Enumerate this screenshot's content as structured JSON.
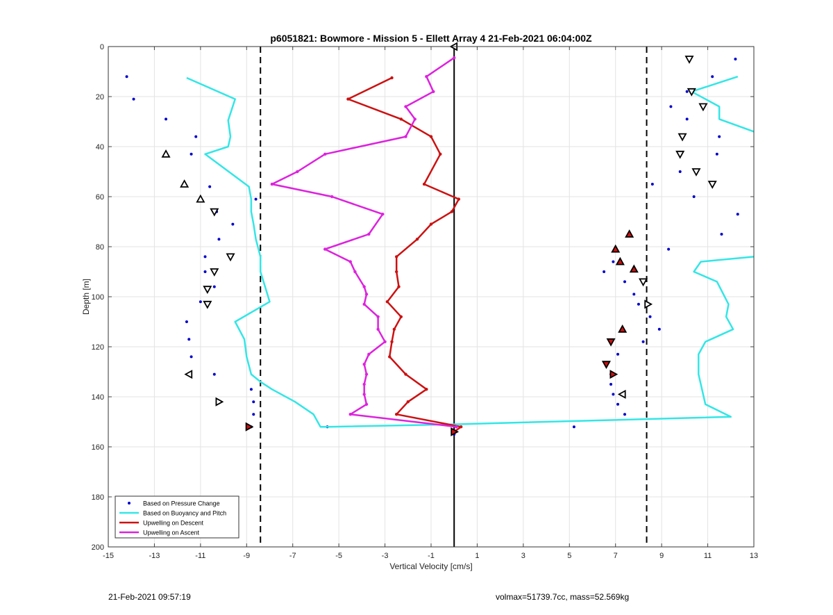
{
  "footer": {
    "timestamp": "21-Feb-2021 09:57:19",
    "summary": "volmax=51739.7cc, mass=52.569kg"
  },
  "chart_data": {
    "type": "scatter",
    "title": "p6051821: Bowmore - Mission 5 - Ellett Array 4 21-Feb-2021 06:04:00Z",
    "xlabel": "Vertical Velocity [cm/s]",
    "ylabel": "Depth [m]",
    "xlim": [
      -15,
      13
    ],
    "ylim": [
      0,
      200
    ],
    "y_reversed": true,
    "x_ticks": [
      -15,
      -13,
      -11,
      -9,
      -7,
      -5,
      -3,
      -1,
      1,
      3,
      5,
      7,
      9,
      11,
      13
    ],
    "y_ticks": [
      0,
      20,
      40,
      60,
      80,
      100,
      120,
      140,
      160,
      180,
      200
    ],
    "grid": true,
    "legend_position": "bottom-left",
    "colors": {
      "pressure": "#0000cc",
      "buoyancy": "#33e6e6",
      "descent": "#cc1111",
      "ascent": "#dd22dd",
      "reference_lines": "#000000",
      "marker_fill": "#cc1111"
    },
    "series": [
      {
        "name": "Based on Pressure Change",
        "style": "points",
        "points": [
          [
            -14.2,
            12
          ],
          [
            -13.9,
            21
          ],
          [
            -12.5,
            29
          ],
          [
            -11.2,
            36
          ],
          [
            -11.4,
            43
          ],
          [
            -10.6,
            56
          ],
          [
            -8.6,
            61
          ],
          [
            -10.3,
            66
          ],
          [
            -9.6,
            71
          ],
          [
            -10.2,
            77
          ],
          [
            -10.8,
            84
          ],
          [
            -10.8,
            90
          ],
          [
            -10.4,
            96
          ],
          [
            -11,
            102
          ],
          [
            -11.6,
            110
          ],
          [
            -11.5,
            117
          ],
          [
            -11.4,
            124
          ],
          [
            -10.4,
            131
          ],
          [
            -8.8,
            137
          ],
          [
            -8.7,
            142
          ],
          [
            -8.7,
            147
          ],
          [
            -8.8,
            152
          ],
          [
            -5.5,
            152
          ],
          [
            5.2,
            152
          ],
          [
            12.2,
            5
          ],
          [
            11.2,
            12
          ],
          [
            10.1,
            18
          ],
          [
            9.4,
            24
          ],
          [
            10.1,
            29
          ],
          [
            11.5,
            36
          ],
          [
            11.4,
            43
          ],
          [
            9.8,
            50
          ],
          [
            8.6,
            55
          ],
          [
            10.4,
            60
          ],
          [
            12.3,
            67
          ],
          [
            11.6,
            75
          ],
          [
            9.3,
            81
          ],
          [
            6.9,
            86
          ],
          [
            6.5,
            90
          ],
          [
            7.4,
            94
          ],
          [
            7.8,
            99
          ],
          [
            8,
            103
          ],
          [
            8.5,
            108
          ],
          [
            8.9,
            113
          ],
          [
            8.2,
            118
          ],
          [
            7.1,
            123
          ],
          [
            6.8,
            131
          ],
          [
            6.8,
            135
          ],
          [
            6.9,
            139
          ],
          [
            7.1,
            143
          ],
          [
            7.4,
            147
          ],
          [
            0,
            155
          ]
        ]
      },
      {
        "name": "Based on Buoyancy and Pitch",
        "style": "line",
        "segments": [
          [
            [
              -11.6,
              12.5
            ],
            [
              -9.5,
              21
            ],
            [
              -9.8,
              29.5
            ],
            [
              -9.7,
              36
            ],
            [
              -9.8,
              40
            ],
            [
              -10.8,
              43
            ],
            [
              -8.9,
              56
            ],
            [
              -8.8,
              61
            ],
            [
              -8.8,
              66
            ],
            [
              -8.7,
              71
            ],
            [
              -8.6,
              77
            ],
            [
              -8.4,
              84
            ],
            [
              -8.4,
              90
            ],
            [
              -8.2,
              96
            ],
            [
              -8,
              102
            ],
            [
              -9.5,
              110
            ],
            [
              -9.1,
              117
            ],
            [
              -9,
              124
            ],
            [
              -8.8,
              131
            ],
            [
              -8.4,
              134
            ],
            [
              -7.9,
              137
            ],
            [
              -6.9,
              142
            ],
            [
              -6.1,
              147
            ],
            [
              -5.8,
              152
            ],
            [
              -5.5,
              152
            ],
            [
              0,
              151
            ],
            [
              12,
              148
            ],
            [
              10.9,
              143
            ],
            [
              10.8,
              139
            ],
            [
              10.7,
              135
            ],
            [
              10.6,
              131
            ],
            [
              10.6,
              123
            ],
            [
              10.9,
              118
            ],
            [
              12.1,
              113
            ],
            [
              11.8,
              108
            ],
            [
              11.9,
              103
            ],
            [
              11.4,
              94
            ],
            [
              10.4,
              90
            ],
            [
              10.7,
              86
            ],
            [
              13,
              84
            ]
          ],
          [
            [
              10.3,
              18
            ],
            [
              12.3,
              12
            ]
          ],
          [
            [
              10.3,
              18
            ],
            [
              11.5,
              24
            ],
            [
              11.5,
              29
            ],
            [
              13,
              34
            ]
          ]
        ]
      },
      {
        "name": "Upwelling on Descent",
        "style": "line",
        "points": [
          [
            -2.7,
            12.5
          ],
          [
            -4.6,
            21
          ],
          [
            -2.3,
            29
          ],
          [
            -1,
            36
          ],
          [
            -0.6,
            43
          ],
          [
            -1.3,
            55
          ],
          [
            0.2,
            61
          ],
          [
            -0.1,
            66
          ],
          [
            -1,
            71
          ],
          [
            -1.6,
            77
          ],
          [
            -2.5,
            84
          ],
          [
            -2.5,
            90
          ],
          [
            -2.4,
            96
          ],
          [
            -2.9,
            102
          ],
          [
            -2.3,
            108
          ],
          [
            -2.6,
            113
          ],
          [
            -2.7,
            118
          ],
          [
            -2.8,
            124
          ],
          [
            -2.1,
            131
          ],
          [
            -1.2,
            137
          ],
          [
            -2,
            142
          ],
          [
            -2.5,
            147
          ],
          [
            0.3,
            152
          ],
          [
            0,
            154
          ]
        ]
      },
      {
        "name": "Upwelling on Ascent",
        "style": "line",
        "points": [
          [
            0,
            4.5
          ],
          [
            -1.2,
            12
          ],
          [
            -0.9,
            18
          ],
          [
            -2.1,
            24
          ],
          [
            -1.7,
            29
          ],
          [
            -2.1,
            36
          ],
          [
            -5.6,
            43
          ],
          [
            -6.8,
            50
          ],
          [
            -7.9,
            55
          ],
          [
            -5.3,
            60
          ],
          [
            -3.1,
            67
          ],
          [
            -3.7,
            75
          ],
          [
            -5.6,
            81
          ],
          [
            -4.5,
            86
          ],
          [
            -4.3,
            90
          ],
          [
            -3.9,
            96
          ],
          [
            -3.8,
            99
          ],
          [
            -3.9,
            103
          ],
          [
            -3.3,
            108
          ],
          [
            -3.3,
            113
          ],
          [
            -3,
            118
          ],
          [
            -3.7,
            123
          ],
          [
            -3.9,
            127
          ],
          [
            -3.8,
            131
          ],
          [
            -3.9,
            135
          ],
          [
            -3.9,
            139
          ],
          [
            -3.8,
            143
          ],
          [
            -4.5,
            147
          ],
          [
            0.1,
            152
          ]
        ]
      }
    ],
    "markers_up": [
      [
        -12.5,
        43
      ],
      [
        -11.7,
        55
      ],
      [
        -11,
        61
      ],
      [
        7.6,
        75
      ],
      [
        7,
        81
      ],
      [
        7.2,
        86
      ],
      [
        7.8,
        89
      ],
      [
        7.3,
        113
      ]
    ],
    "markers_down": [
      [
        10.2,
        5
      ],
      [
        10.3,
        18
      ],
      [
        10.8,
        24
      ],
      [
        9.9,
        36
      ],
      [
        9.8,
        43
      ],
      [
        10.5,
        50
      ],
      [
        11.2,
        55
      ],
      [
        -10.4,
        66
      ],
      [
        -9.7,
        84
      ],
      [
        -10.4,
        90
      ],
      [
        -10.7,
        97
      ],
      [
        -10.7,
        103
      ],
      [
        8.2,
        94
      ],
      [
        6.6,
        127
      ],
      [
        6.8,
        118
      ]
    ],
    "markers_left": [
      [
        -11.5,
        131
      ],
      [
        7.3,
        139
      ],
      [
        0,
        0
      ]
    ],
    "markers_right": [
      [
        -10.2,
        142
      ],
      [
        8.4,
        103
      ],
      [
        6.9,
        131
      ],
      [
        -8.9,
        152
      ],
      [
        0,
        154
      ]
    ],
    "reference_lines": {
      "zero": 0,
      "dashed": [
        -8.4,
        8.35
      ]
    }
  }
}
